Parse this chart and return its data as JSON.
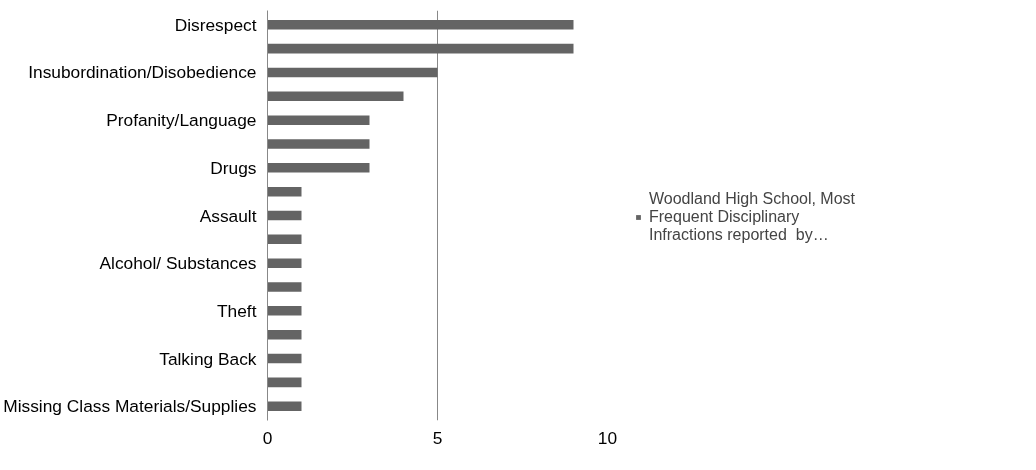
{
  "chart_data": {
    "type": "bar",
    "orientation": "horizontal",
    "categories": [
      "Disrespect",
      null,
      "Insubordination/Disobedience",
      null,
      "Profanity/Language",
      null,
      "Drugs",
      null,
      "Assault",
      null,
      "Alcohol/ Substances",
      null,
      "Theft",
      null,
      "Talking Back",
      null,
      "Missing Class Materials/Supplies"
    ],
    "series": [
      {
        "name": "Woodland High School, Most Frequent Disciplinary Infractions reported  by…",
        "color": "#646464",
        "values": [
          9,
          9,
          5,
          4,
          3,
          3,
          3,
          1,
          1,
          1,
          1,
          1,
          1,
          1,
          1,
          1,
          1
        ]
      }
    ],
    "xlim": [
      0,
      10
    ],
    "xticks": [
      0,
      5,
      10
    ],
    "grid": "x",
    "legend": "right"
  }
}
